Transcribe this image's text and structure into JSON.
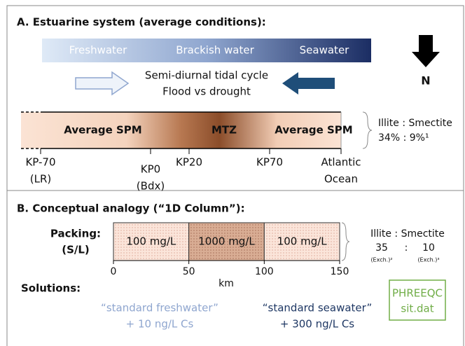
{
  "panel_a": {
    "title": "A. Estuarine system (average conditions):",
    "salinity": [
      "Freshwater",
      "Brackish water",
      "Seawater"
    ],
    "north": "N",
    "tide_lines": [
      "Semi-diurnal tidal cycle",
      "Flood vs drought"
    ],
    "zones": [
      "Average SPM",
      "MTZ",
      "Average SPM"
    ],
    "clay_header": "Illite : Smectite",
    "clay_values": "34% : 9%¹",
    "locations": [
      [
        "KP-70",
        "(LR)"
      ],
      [
        "KP0",
        "(Bdx)"
      ],
      [
        "KP20"
      ],
      [
        "KP70"
      ],
      [
        "Atlantic",
        "Ocean"
      ]
    ]
  },
  "panel_b": {
    "title": "B. Conceptual analogy (“1D Column”):",
    "packing": [
      "Packing:",
      "(S/L)"
    ],
    "segments": [
      "100 mg/L",
      "1000 mg/L",
      "100 mg/L"
    ],
    "clay_header": "Illite : Smectite",
    "clay_illite": "35",
    "clay_sep": ":",
    "clay_smectite": "10",
    "illite_note": "(Exch.)²",
    "smectite_note": "(Exch.)³",
    "axis": {
      "xlim": [
        0,
        150
      ],
      "xticks": [
        0,
        50,
        100,
        150
      ],
      "label": "km"
    },
    "solutions_label": "Solutions:",
    "freshwater": [
      "“standard freshwater”",
      "+ 10 ng/L Cs"
    ],
    "seawater": [
      "“standard seawater”",
      "+ 300 ng/L Cs"
    ],
    "database": [
      "PHREEQC",
      "sit.dat"
    ]
  }
}
